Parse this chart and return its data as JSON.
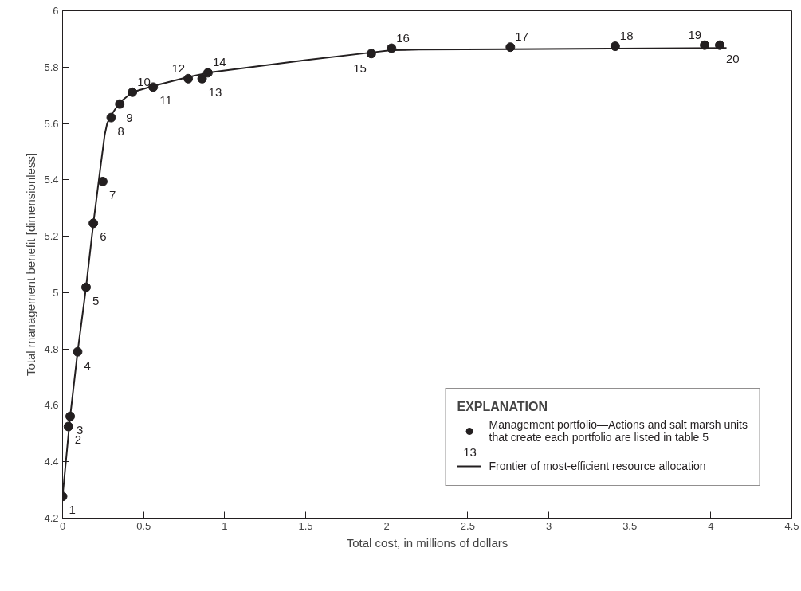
{
  "chart_data": {
    "type": "scatter",
    "xlabel": "Total cost, in millions of dollars",
    "ylabel": "Total management benefit [dimensionless]",
    "legend_title": "EXPLANATION",
    "legend": "bottom right",
    "grid": false,
    "xlim": [
      0,
      4.5
    ],
    "ylim": [
      4.2,
      6
    ],
    "xticks": [
      0,
      0.5,
      1,
      1.5,
      2,
      2.5,
      3,
      3.5,
      4,
      4.5
    ],
    "yticks": [
      4.2,
      4.4,
      4.6,
      4.8,
      5,
      5.2,
      5.4,
      5.6,
      5.8,
      6
    ],
    "annotations": [
      {
        "text": "1",
        "x": 0,
        "y": 4.277
      },
      {
        "text": "2",
        "x": 0.036,
        "y": 4.525
      },
      {
        "text": "3",
        "x": 0.047,
        "y": 4.561
      },
      {
        "text": "4",
        "x": 0.093,
        "y": 4.79
      },
      {
        "text": "5",
        "x": 0.145,
        "y": 5.019
      },
      {
        "text": "6",
        "x": 0.19,
        "y": 5.246
      },
      {
        "text": "7",
        "x": 0.248,
        "y": 5.394
      },
      {
        "text": "8",
        "x": 0.3,
        "y": 5.621
      },
      {
        "text": "9",
        "x": 0.353,
        "y": 5.669
      },
      {
        "text": "10",
        "x": 0.431,
        "y": 5.711
      },
      {
        "text": "11",
        "x": 0.559,
        "y": 5.729
      },
      {
        "text": "12",
        "x": 0.775,
        "y": 5.759
      },
      {
        "text": "13",
        "x": 0.861,
        "y": 5.759
      },
      {
        "text": "14",
        "x": 0.897,
        "y": 5.78
      },
      {
        "text": "15",
        "x": 1.905,
        "y": 5.848
      },
      {
        "text": "16",
        "x": 2.03,
        "y": 5.867
      },
      {
        "text": "17",
        "x": 2.763,
        "y": 5.871
      },
      {
        "text": "18",
        "x": 3.41,
        "y": 5.874
      },
      {
        "text": "19",
        "x": 3.962,
        "y": 5.878
      },
      {
        "text": "20",
        "x": 4.055,
        "y": 5.878
      },
      "13"
    ],
    "series": [
      {
        "name": "Management portfolio—Actions and salt marsh units that create each portfolio are listed in table 5",
        "marker": "circle",
        "color": "#231f20",
        "x": [
          0,
          0.036,
          0.047,
          0.093,
          0.145,
          0.19,
          0.248,
          0.3,
          0.353,
          0.431,
          0.559,
          0.775,
          0.861,
          0.897,
          1.905,
          2.03,
          2.763,
          3.41,
          3.962,
          4.055
        ],
        "values": [
          4.277,
          4.525,
          4.561,
          4.79,
          5.019,
          5.246,
          5.394,
          5.621,
          5.669,
          5.711,
          5.729,
          5.759,
          5.759,
          5.78,
          5.848,
          5.867,
          5.871,
          5.874,
          5.878,
          5.878
        ]
      },
      {
        "name": "Frontier of most-efficient resource allocation",
        "type": "line",
        "line_style": "solid",
        "color": "#231f20",
        "x": [
          0,
          0.047,
          0.093,
          0.145,
          0.19,
          0.235,
          0.26,
          0.275,
          0.3,
          0.353,
          0.431,
          0.559,
          0.775,
          0.897,
          1.5,
          1.905,
          2.03,
          2.2,
          2.763,
          3.41,
          4.097
        ],
        "values": [
          4.277,
          4.561,
          4.79,
          5.019,
          5.246,
          5.45,
          5.56,
          5.6,
          5.63,
          5.675,
          5.711,
          5.733,
          5.765,
          5.78,
          5.825,
          5.852,
          5.86,
          5.862,
          5.864,
          5.866,
          5.868
        ]
      }
    ]
  }
}
